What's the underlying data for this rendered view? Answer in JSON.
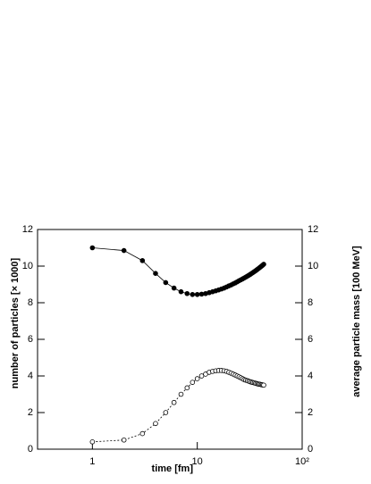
{
  "chart_data": {
    "type": "line",
    "x_label": "time [fm]",
    "y_label": "number of particles [× 1000]",
    "y2_label": "average particle mass [100 MeV]",
    "x_scale": "log",
    "xlim": [
      0.3,
      100
    ],
    "xticks": [
      1,
      10,
      {
        "value": 100,
        "label": "10²"
      }
    ],
    "ylim": [
      0,
      12
    ],
    "yticks": [
      0,
      2,
      4,
      6,
      8,
      10,
      12
    ],
    "y2lim": [
      0,
      12
    ],
    "y2ticks": [
      0,
      2,
      4,
      6,
      8,
      10,
      12
    ],
    "x": [
      1,
      2,
      3,
      4,
      5,
      6,
      7,
      8,
      9,
      10,
      11,
      12,
      13,
      14,
      15,
      16,
      17,
      18,
      19,
      20,
      21,
      22,
      23,
      24,
      25,
      26,
      27,
      28,
      29,
      30,
      31,
      32,
      33,
      34,
      35,
      36,
      37,
      38,
      39,
      40,
      41,
      42,
      43
    ],
    "series": [
      {
        "name": "number of particles",
        "color": "#000000",
        "marker": "filled",
        "line_style": "solid",
        "values": [
          11.0,
          10.85,
          10.3,
          9.6,
          9.1,
          8.8,
          8.6,
          8.5,
          8.45,
          8.45,
          8.47,
          8.5,
          8.55,
          8.6,
          8.65,
          8.7,
          8.75,
          8.8,
          8.86,
          8.92,
          8.97,
          9.03,
          9.08,
          9.14,
          9.2,
          9.25,
          9.3,
          9.35,
          9.4,
          9.45,
          9.5,
          9.55,
          9.6,
          9.65,
          9.7,
          9.75,
          9.8,
          9.85,
          9.9,
          9.95,
          10.0,
          10.05,
          10.1
        ]
      },
      {
        "name": "average particle mass",
        "color": "#000000",
        "marker": "open",
        "line_style": "dashed",
        "axis": "y2",
        "values": [
          0.4,
          0.5,
          0.85,
          1.4,
          2.0,
          2.55,
          3.0,
          3.35,
          3.65,
          3.85,
          4.0,
          4.1,
          4.2,
          4.25,
          4.28,
          4.3,
          4.3,
          4.28,
          4.25,
          4.2,
          4.15,
          4.1,
          4.05,
          4.0,
          3.95,
          3.9,
          3.85,
          3.8,
          3.77,
          3.74,
          3.71,
          3.68,
          3.66,
          3.64,
          3.62,
          3.6,
          3.58,
          3.56,
          3.55,
          3.54,
          3.52,
          3.51,
          3.5
        ]
      }
    ]
  }
}
